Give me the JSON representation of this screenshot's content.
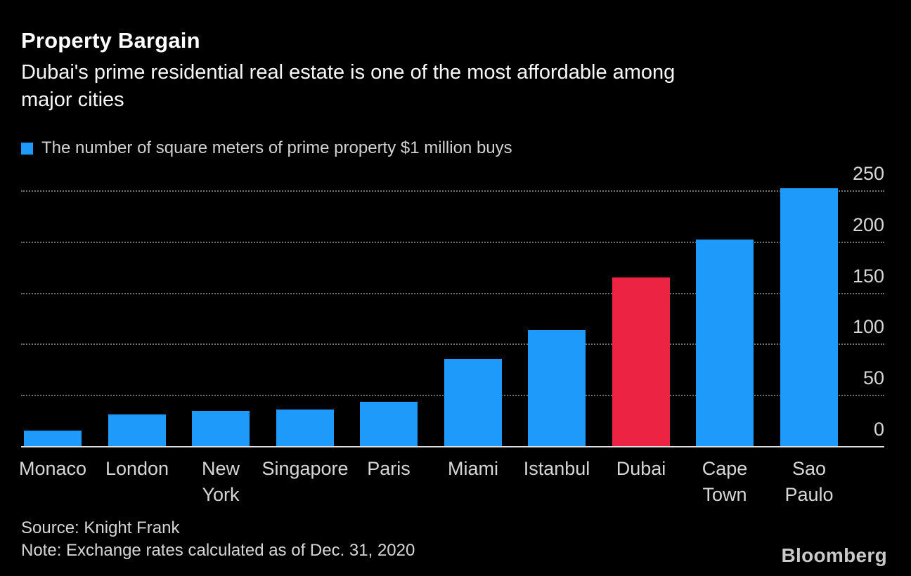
{
  "header": {
    "title": "Property Bargain",
    "subtitle": "Dubai's prime residential real estate is one of the most affordable among major cities",
    "subtitle_lines": [
      "Dubai's prime residential real estate is one of the most affordable among",
      "major cities"
    ]
  },
  "legend": {
    "label": "The number of square meters of prime property $1 million buys",
    "swatch_color": "#1e9bfa"
  },
  "chart_data": {
    "type": "bar",
    "title": "Property Bargain",
    "series_name": "The number of square meters of prime property $1 million buys",
    "categories": [
      "Monaco",
      "London",
      "New York",
      "Singapore",
      "Paris",
      "Miami",
      "Istanbul",
      "Dubai",
      "Cape Town",
      "Sao Paulo"
    ],
    "category_lines": [
      [
        "Monaco"
      ],
      [
        "London"
      ],
      [
        "New",
        "York"
      ],
      [
        "Singapore"
      ],
      [
        "Paris"
      ],
      [
        "Miami"
      ],
      [
        "Istanbul"
      ],
      [
        "Dubai"
      ],
      [
        "Cape",
        "Town"
      ],
      [
        "Sao",
        "Paulo"
      ]
    ],
    "values": [
      15,
      31,
      34,
      36,
      43,
      85,
      113,
      165,
      202,
      252
    ],
    "xlabel": "",
    "ylabel": "",
    "ylim": [
      0,
      250
    ],
    "yticks": [
      0,
      50,
      100,
      150,
      200,
      250
    ],
    "value_axis_side": "right",
    "grid": "horizontal-dotted",
    "legend_position": "top-left",
    "bar_color": "#1e9bfa",
    "highlight_category": "Dubai",
    "highlight_color": "#ed2344",
    "gridline_color": "#6f6f6f",
    "axis_line_color": "#e0e0e0",
    "tick_label_color": "#d6d6d6"
  },
  "footer": {
    "source": "Source: Knight Frank",
    "note": "Note: Exchange rates calculated as of Dec. 31, 2020",
    "brand": "Bloomberg"
  }
}
